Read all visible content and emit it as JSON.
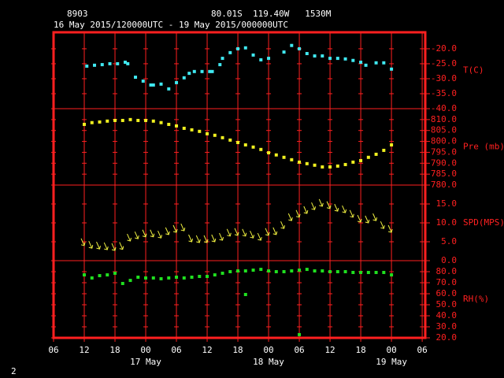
{
  "header": {
    "station": "8903",
    "location": "80.01S  119.40W   1530M",
    "period": "16 May 2015/120000UTC - 19 May 2015/000000UTC",
    "page": "2"
  },
  "chart_data": [
    {
      "type": "scatter",
      "y_label": "T(C)",
      "color": "#40e8f0",
      "xlim": [
        0,
        72.6
      ],
      "ylim": [
        -40,
        -14.5
      ],
      "yticks": [
        {
          "value": -20,
          "label": "-20.0"
        },
        {
          "value": -25,
          "label": "-25.0"
        },
        {
          "value": -30,
          "label": "-30.0"
        },
        {
          "value": -35,
          "label": "-35.0"
        },
        {
          "value": -40,
          "label": "-40.0"
        }
      ],
      "x": [
        6.5,
        8,
        9.5,
        11,
        12.5,
        14,
        14.5,
        16,
        17.5,
        19,
        19.5,
        21,
        22.5,
        24,
        25.5,
        26.5,
        27.5,
        29,
        30.5,
        31,
        32.5,
        33,
        34.5,
        36,
        37.5,
        39,
        40.5,
        42,
        45,
        46.5,
        48,
        49.5,
        51,
        52.5,
        54,
        55.5,
        57,
        58.5,
        60,
        61,
        63,
        64.5,
        66
      ],
      "values": [
        -25.8,
        -25.5,
        -25.3,
        -25.0,
        -25.0,
        -24.5,
        -25.0,
        -29.5,
        -30.8,
        -32.1,
        -32.1,
        -31.8,
        -33.4,
        -31.3,
        -29.7,
        -28.2,
        -27.6,
        -27.6,
        -27.6,
        -27.6,
        -25.3,
        -23.2,
        -21.3,
        -20.0,
        -19.7,
        -22.1,
        -23.7,
        -23.2,
        -21.1,
        -18.9,
        -20.0,
        -21.6,
        -22.4,
        -22.4,
        -23.2,
        -23.2,
        -23.4,
        -23.9,
        -24.5,
        -25.5,
        -24.7,
        -24.7,
        -26.8
      ]
    },
    {
      "type": "scatter",
      "y_label": "Pre (mb)",
      "color": "#f0f020",
      "xlim": [
        0,
        72.6
      ],
      "ylim": [
        780,
        815
      ],
      "yticks": [
        {
          "value": 810,
          "label": "810.0"
        },
        {
          "value": 805,
          "label": "805.0"
        },
        {
          "value": 800,
          "label": "800.0"
        },
        {
          "value": 795,
          "label": "795.0"
        },
        {
          "value": 790,
          "label": "790.0"
        },
        {
          "value": 785,
          "label": "785.0"
        },
        {
          "value": 780,
          "label": "780.0"
        }
      ],
      "x": [
        6,
        7.5,
        9,
        10.5,
        12,
        13.5,
        15,
        16.5,
        18,
        19.5,
        21,
        22.5,
        24,
        25.5,
        27,
        28.5,
        30,
        31.5,
        33,
        34.5,
        36,
        37.5,
        39,
        40.5,
        42,
        43.5,
        45,
        46.5,
        48,
        49.5,
        51,
        52.5,
        54,
        55.5,
        57,
        58.5,
        60,
        61.5,
        63,
        64.5,
        66
      ],
      "values": [
        807.8,
        808.6,
        808.9,
        809.3,
        809.6,
        809.6,
        810,
        809.6,
        809.6,
        809.3,
        808.6,
        807.8,
        807.1,
        806.0,
        805.3,
        804.6,
        803.5,
        802.8,
        801.7,
        800.6,
        799.5,
        798.4,
        797.4,
        796.3,
        794.8,
        793.8,
        792.7,
        791.6,
        790.5,
        789.8,
        789.1,
        788.3,
        788.3,
        788.7,
        789.4,
        790.5,
        791.2,
        792.7,
        794.1,
        795.9,
        798.4
      ]
    },
    {
      "type": "wind",
      "y_label": "SPD(MPS)",
      "color": "#f0f040",
      "xlim": [
        0,
        72.6
      ],
      "ylim": [
        0,
        20
      ],
      "yticks": [
        {
          "value": 15,
          "label": "15.0"
        },
        {
          "value": 10,
          "label": "10.0"
        },
        {
          "value": 5,
          "label": "5.0"
        },
        {
          "value": 0,
          "label": "0.0"
        }
      ],
      "x": [
        6,
        7.5,
        9,
        10.5,
        12,
        13.5,
        15,
        16.5,
        18,
        19.5,
        21,
        22.5,
        24,
        25.5,
        27,
        28.5,
        30,
        31.5,
        33,
        34.5,
        36,
        37.5,
        39,
        40.5,
        42,
        43.5,
        45,
        46.5,
        48,
        49.5,
        51,
        52.5,
        54,
        55.5,
        57,
        58.5,
        60,
        61.5,
        63,
        64.5,
        66
      ],
      "values": [
        4.0,
        3.3,
        3.1,
        2.9,
        2.7,
        3.0,
        5.2,
        5.8,
        6.3,
        6.3,
        6.0,
        6.9,
        7.5,
        7.9,
        5.0,
        4.8,
        4.8,
        5.0,
        5.4,
        6.5,
        6.7,
        6.5,
        6.0,
        5.4,
        6.7,
        6.9,
        8.5,
        10.6,
        11.5,
        12.5,
        13.5,
        14.4,
        13.8,
        13.1,
        12.7,
        11.5,
        10.2,
        10.0,
        10.6,
        8.5,
        7.5
      ]
    },
    {
      "type": "scatter",
      "y_label": "RH(%)",
      "color": "#20e020",
      "xlim": [
        0,
        72.6
      ],
      "ylim": [
        20,
        90
      ],
      "yticks": [
        {
          "value": 80,
          "label": "80.0"
        },
        {
          "value": 70,
          "label": "70.0"
        },
        {
          "value": 60,
          "label": "60.0"
        },
        {
          "value": 50,
          "label": "50.0"
        },
        {
          "value": 40,
          "label": "40.0"
        },
        {
          "value": 30,
          "label": "30.0"
        },
        {
          "value": 20,
          "label": "20.0"
        }
      ],
      "x": [
        6,
        7.5,
        9,
        10.5,
        12,
        13.5,
        15,
        16.5,
        18,
        19.5,
        21,
        22.5,
        24,
        25.5,
        27,
        28.5,
        30,
        31.5,
        33,
        34.5,
        36,
        37.5,
        39,
        40.5,
        42,
        43.5,
        45,
        46.5,
        48,
        49.5,
        51,
        52.5,
        54,
        55.5,
        57,
        58.5,
        60,
        61.5,
        63,
        64.5,
        66,
        37.5,
        48
      ],
      "values": [
        77.1,
        74.3,
        76.4,
        77.1,
        78.6,
        69.3,
        72.1,
        75.0,
        74.3,
        74.3,
        73.6,
        74.3,
        75.0,
        74.3,
        75.0,
        75.7,
        75.7,
        77.1,
        78.6,
        80.0,
        80.7,
        80.7,
        81.4,
        82.1,
        80.7,
        80.0,
        80.0,
        80.7,
        81.4,
        82.1,
        80.7,
        80.7,
        80.0,
        80.0,
        80.0,
        79.3,
        79.3,
        79.3,
        79.3,
        79.3,
        77.1,
        59.3,
        22.9
      ],
      "xticks": [
        {
          "value": 0,
          "label": "06"
        },
        {
          "value": 6,
          "label": "12"
        },
        {
          "value": 12,
          "label": "18"
        },
        {
          "value": 18,
          "label": "00"
        },
        {
          "value": 24,
          "label": "06"
        },
        {
          "value": 30,
          "label": "12"
        },
        {
          "value": 36,
          "label": "18"
        },
        {
          "value": 42,
          "label": "00"
        },
        {
          "value": 48,
          "label": "06"
        },
        {
          "value": 54,
          "label": "12"
        },
        {
          "value": 60,
          "label": "18"
        },
        {
          "value": 66,
          "label": "00"
        },
        {
          "value": 72,
          "label": "06"
        }
      ],
      "date_ticks": [
        {
          "value": 18,
          "label": "17 May"
        },
        {
          "value": 42,
          "label": "18 May"
        },
        {
          "value": 66,
          "label": "19 May"
        }
      ]
    }
  ]
}
